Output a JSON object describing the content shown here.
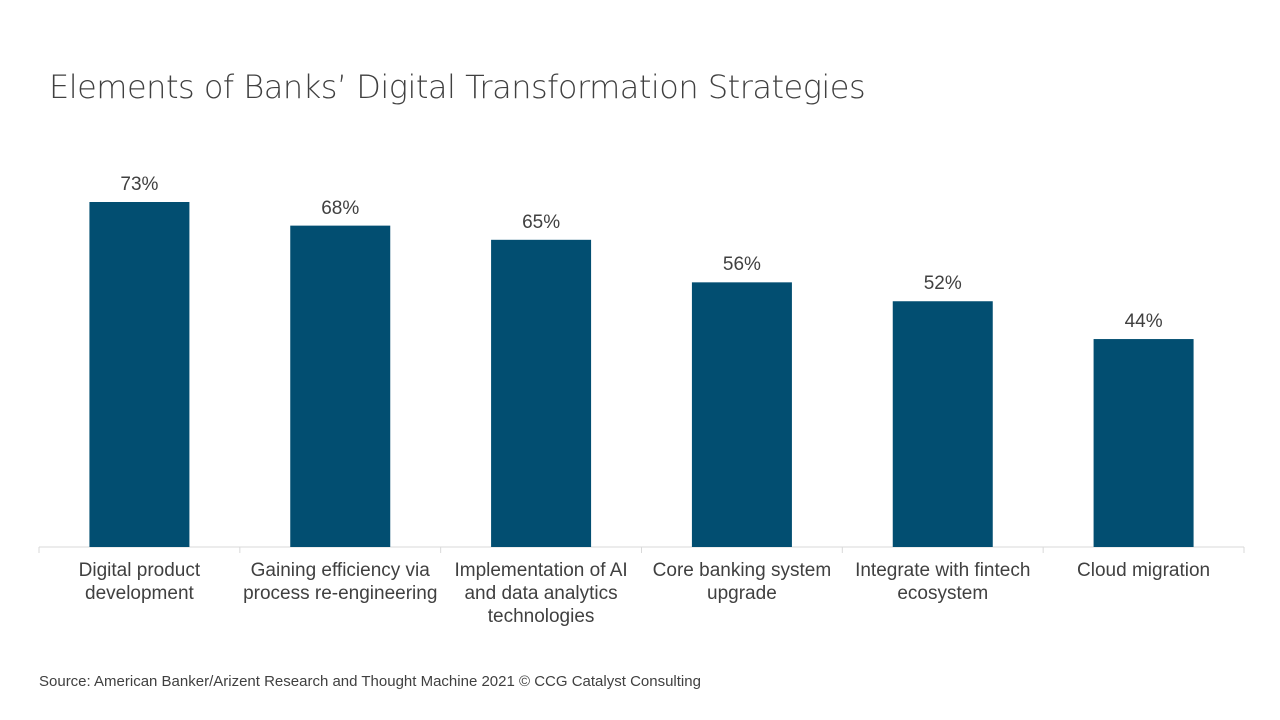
{
  "chart_data": {
    "type": "bar",
    "title": "Elements of Banks’ Digital Transformation Strategies",
    "categories": [
      "Digital product development",
      "Gaining efficiency via process re-engineering",
      "Implementation of AI and data analytics technologies",
      "Core banking system upgrade",
      "Integrate with fintech ecosystem",
      "Cloud migration"
    ],
    "values": [
      73,
      68,
      65,
      56,
      52,
      44
    ],
    "value_labels": [
      "73%",
      "68%",
      "65%",
      "56%",
      "52%",
      "44%"
    ],
    "color": "#024e71",
    "source": "Source: American Banker/Arizent Research and Thought Machine 2021 © CCG Catalyst Consulting"
  }
}
